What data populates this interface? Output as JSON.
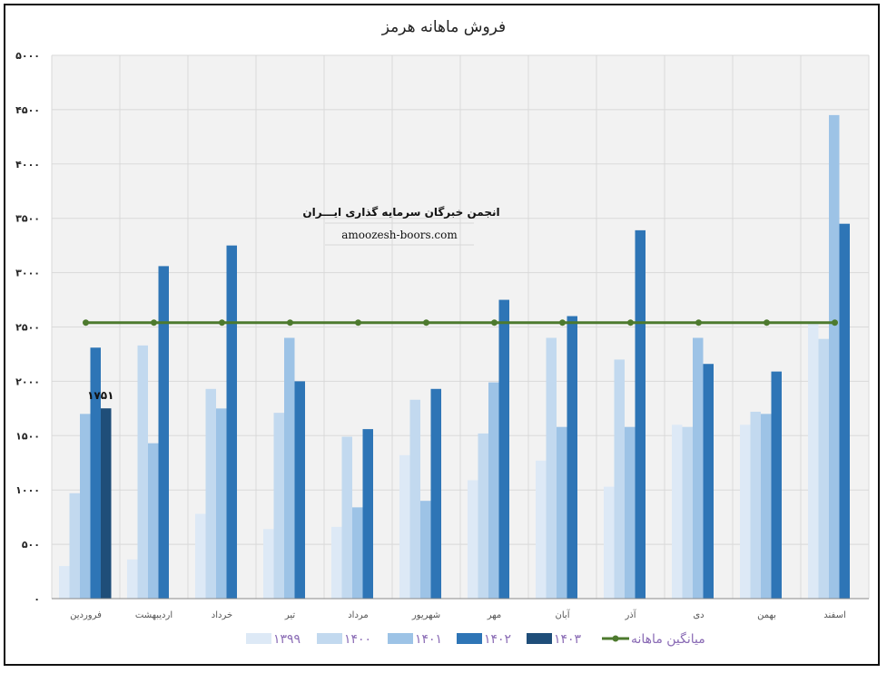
{
  "chart_data": {
    "type": "bar",
    "title": "فروش ماهانه هرمز",
    "xlabel": "",
    "ylabel": "",
    "ylim": [
      0,
      5000
    ],
    "yticks": [
      "۵۰۰۰",
      "۴۵۰۰",
      "۴۰۰۰",
      "۳۵۰۰",
      "۳۰۰۰",
      "۲۵۰۰",
      "۲۰۰۰",
      "۱۵۰۰",
      "۱۰۰۰",
      "۵۰۰",
      "۰"
    ],
    "ytick_values": [
      5000,
      4500,
      4000,
      3500,
      3000,
      2500,
      2000,
      1500,
      1000,
      500,
      0
    ],
    "categories": [
      "فروردین",
      "اردیبهشت",
      "خرداد",
      "تیر",
      "مرداد",
      "شهریور",
      "مهر",
      "آبان",
      "آذر",
      "دی",
      "بهمن",
      "اسفند"
    ],
    "series": [
      {
        "name": "۱۳۹۹",
        "color": "#dde9f6",
        "values": [
          300,
          360,
          780,
          640,
          660,
          1320,
          1090,
          1270,
          1030,
          1600,
          1600,
          2540
        ]
      },
      {
        "name": "۱۴۰۰",
        "color": "#c2d9ef",
        "values": [
          970,
          2330,
          1930,
          1710,
          1490,
          1830,
          1520,
          2400,
          2200,
          1580,
          1720,
          2390
        ]
      },
      {
        "name": "۱۴۰۱",
        "color": "#9dc3e6",
        "values": [
          1700,
          1430,
          1750,
          2400,
          840,
          900,
          1990,
          1580,
          1580,
          2400,
          1700,
          4450
        ]
      },
      {
        "name": "۱۴۰۲",
        "color": "#2e75b6",
        "values": [
          2310,
          3060,
          3250,
          2000,
          1560,
          1930,
          2750,
          2600,
          3390,
          2160,
          2090,
          3450
        ]
      },
      {
        "name": "۱۴۰۳",
        "color": "#1f4e79",
        "values": [
          1751,
          null,
          null,
          null,
          null,
          null,
          null,
          null,
          null,
          null,
          null,
          null
        ]
      }
    ],
    "average_line": {
      "name": "میانگین ماهانه",
      "color": "#4d7a2e",
      "value": 2540
    },
    "data_labels": [
      {
        "series": "۱۴۰۳",
        "category": "فروردین",
        "text": "۱۷۵۱"
      }
    ],
    "grid": true,
    "legend_position": "bottom"
  },
  "watermark": {
    "line1": "انجمن خبرگان سرمایه گذاری ایـــران",
    "line2": "amoozesh-boors.com"
  }
}
